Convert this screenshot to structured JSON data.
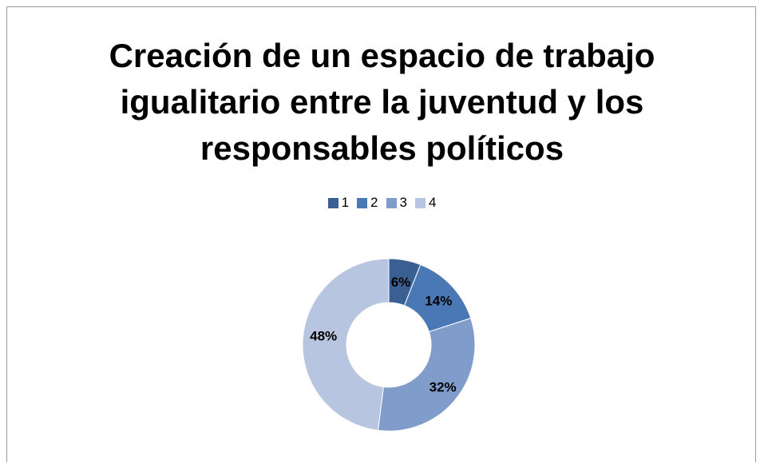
{
  "chart_data": {
    "type": "pie",
    "variant": "donut",
    "title_lines": [
      "Creación de un espacio de trabajo",
      "igualitario entre la juventud y los",
      "responsables políticos"
    ],
    "legend_position": "top",
    "categories": [
      "1",
      "2",
      "3",
      "4"
    ],
    "values": [
      6,
      14,
      32,
      48
    ],
    "labels": [
      "6%",
      "14%",
      "32%",
      "48%"
    ],
    "colors": [
      "#3a5f93",
      "#4a78b4",
      "#7f9ccb",
      "#b7c5e0"
    ]
  }
}
